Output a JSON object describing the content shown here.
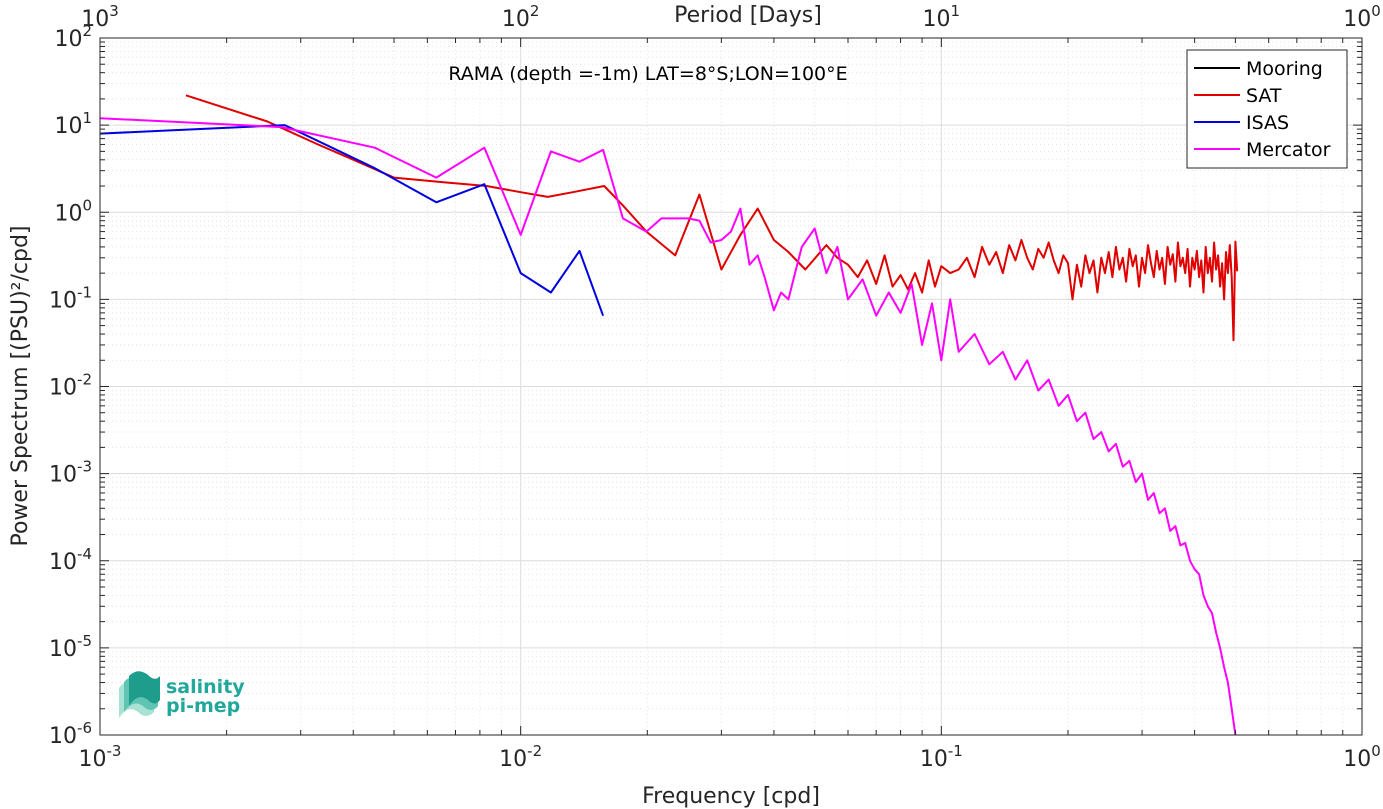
{
  "chart_data": {
    "type": "line",
    "title": "RAMA (depth =-1m) LAT=8°S;LON=100°E",
    "xlabel": "Frequency [cpd]",
    "ylabel": "Power Spectrum [(PSU)²/cpd]",
    "x2label": "Period [Days]",
    "xscale": "log",
    "yscale": "log",
    "xlim": [
      0.001,
      1
    ],
    "ylim": [
      1e-06,
      100
    ],
    "grid": true,
    "legend_position": "top-right",
    "x_ticks": [
      {
        "base": "10",
        "exp": "-3"
      },
      {
        "base": "10",
        "exp": "-2"
      },
      {
        "base": "10",
        "exp": "-1"
      },
      {
        "base": "10",
        "exp": "0"
      }
    ],
    "x2_ticks": [
      {
        "base": "10",
        "exp": "3"
      },
      {
        "base": "10",
        "exp": "2"
      },
      {
        "base": "10",
        "exp": "1"
      },
      {
        "base": "10",
        "exp": "0"
      }
    ],
    "y_ticks": [
      {
        "base": "10",
        "exp": "-6"
      },
      {
        "base": "10",
        "exp": "-5"
      },
      {
        "base": "10",
        "exp": "-4"
      },
      {
        "base": "10",
        "exp": "-3"
      },
      {
        "base": "10",
        "exp": "-2"
      },
      {
        "base": "10",
        "exp": "-1"
      },
      {
        "base": "10",
        "exp": "0"
      },
      {
        "base": "10",
        "exp": "1"
      },
      {
        "base": "10",
        "exp": "2"
      }
    ],
    "series": [
      {
        "name": "Mooring",
        "color": "#000000",
        "x": [],
        "y": []
      },
      {
        "name": "SAT",
        "color": "#e00000",
        "x": [
          0.0016,
          0.0025,
          0.0033,
          0.0041,
          0.005,
          0.0066,
          0.0083,
          0.01,
          0.0116,
          0.0133,
          0.0158,
          0.0175,
          0.0199,
          0.0233,
          0.0266,
          0.03,
          0.0333,
          0.0366,
          0.04,
          0.0433,
          0.0475,
          0.0533,
          0.0566,
          0.06,
          0.0633,
          0.0666,
          0.07,
          0.0733,
          0.0766,
          0.08,
          0.0833,
          0.0866,
          0.09,
          0.0933,
          0.0966,
          0.1,
          0.105,
          0.11,
          0.115,
          0.12,
          0.125,
          0.13,
          0.135,
          0.14,
          0.145,
          0.15,
          0.155,
          0.16,
          0.165,
          0.17,
          0.175,
          0.18,
          0.185,
          0.19,
          0.195,
          0.2,
          0.205,
          0.21,
          0.215,
          0.22,
          0.225,
          0.23,
          0.235,
          0.24,
          0.245,
          0.25,
          0.255,
          0.26,
          0.265,
          0.27,
          0.275,
          0.28,
          0.285,
          0.29,
          0.295,
          0.3,
          0.305,
          0.31,
          0.315,
          0.32,
          0.325,
          0.33,
          0.335,
          0.34,
          0.345,
          0.35,
          0.355,
          0.36,
          0.365,
          0.37,
          0.375,
          0.38,
          0.385,
          0.39,
          0.395,
          0.4,
          0.405,
          0.41,
          0.415,
          0.42,
          0.425,
          0.43,
          0.435,
          0.44,
          0.445,
          0.45,
          0.455,
          0.46,
          0.465,
          0.47,
          0.475,
          0.48,
          0.485,
          0.49,
          0.495,
          0.5,
          0.505
        ],
        "y": [
          22,
          11,
          6,
          3.8,
          2.5,
          2.2,
          2.0,
          1.7,
          1.5,
          1.7,
          2.0,
          1.2,
          0.6,
          0.32,
          1.6,
          0.22,
          0.55,
          1.1,
          0.48,
          0.35,
          0.22,
          0.42,
          0.3,
          0.25,
          0.18,
          0.28,
          0.15,
          0.32,
          0.14,
          0.19,
          0.13,
          0.2,
          0.12,
          0.28,
          0.14,
          0.24,
          0.2,
          0.22,
          0.3,
          0.18,
          0.4,
          0.25,
          0.35,
          0.2,
          0.42,
          0.28,
          0.48,
          0.3,
          0.22,
          0.38,
          0.3,
          0.45,
          0.28,
          0.2,
          0.32,
          0.26,
          0.1,
          0.25,
          0.14,
          0.32,
          0.2,
          0.28,
          0.12,
          0.3,
          0.2,
          0.35,
          0.18,
          0.4,
          0.22,
          0.3,
          0.16,
          0.38,
          0.24,
          0.32,
          0.14,
          0.3,
          0.2,
          0.42,
          0.26,
          0.18,
          0.36,
          0.22,
          0.3,
          0.15,
          0.4,
          0.25,
          0.33,
          0.16,
          0.45,
          0.24,
          0.3,
          0.2,
          0.38,
          0.14,
          0.3,
          0.22,
          0.36,
          0.18,
          0.28,
          0.12,
          0.4,
          0.2,
          0.3,
          0.16,
          0.45,
          0.22,
          0.32,
          0.14,
          0.26,
          0.1,
          0.35,
          0.2,
          0.42,
          0.18,
          0.034,
          0.46,
          0.21
        ]
      },
      {
        "name": "ISAS",
        "color": "#0000e0",
        "x": [
          0.001,
          0.00275,
          0.0045,
          0.0063,
          0.0082,
          0.01,
          0.0118,
          0.0138,
          0.0157
        ],
        "y": [
          8,
          10,
          3.2,
          1.3,
          2.1,
          0.2,
          0.12,
          0.36,
          0.065
        ]
      },
      {
        "name": "Mercator",
        "color": "#ff00ff",
        "x": [
          0.001,
          0.0027,
          0.0045,
          0.0063,
          0.0082,
          0.01,
          0.0118,
          0.0138,
          0.0157,
          0.0175,
          0.0199,
          0.0216,
          0.025,
          0.0266,
          0.0283,
          0.03,
          0.0316,
          0.0333,
          0.035,
          0.0366,
          0.038,
          0.04,
          0.0416,
          0.0433,
          0.045,
          0.0466,
          0.05,
          0.0533,
          0.0566,
          0.06,
          0.065,
          0.07,
          0.075,
          0.08,
          0.085,
          0.09,
          0.095,
          0.1,
          0.105,
          0.11,
          0.12,
          0.13,
          0.14,
          0.15,
          0.16,
          0.17,
          0.18,
          0.19,
          0.2,
          0.21,
          0.22,
          0.23,
          0.24,
          0.25,
          0.26,
          0.27,
          0.28,
          0.29,
          0.3,
          0.31,
          0.32,
          0.33,
          0.34,
          0.35,
          0.36,
          0.37,
          0.38,
          0.39,
          0.4,
          0.41,
          0.42,
          0.43,
          0.44,
          0.45,
          0.46,
          0.47,
          0.48,
          0.49,
          0.5
        ],
        "y": [
          12,
          9.5,
          5.5,
          2.5,
          5.5,
          0.55,
          5,
          3.8,
          5.2,
          0.85,
          0.6,
          0.85,
          0.85,
          0.8,
          0.45,
          0.48,
          0.6,
          1.1,
          0.25,
          0.32,
          0.18,
          0.075,
          0.12,
          0.1,
          0.21,
          0.4,
          0.65,
          0.2,
          0.4,
          0.1,
          0.17,
          0.065,
          0.12,
          0.07,
          0.15,
          0.03,
          0.09,
          0.02,
          0.1,
          0.025,
          0.04,
          0.018,
          0.025,
          0.012,
          0.02,
          0.009,
          0.012,
          0.006,
          0.008,
          0.004,
          0.005,
          0.0025,
          0.003,
          0.0018,
          0.0022,
          0.0012,
          0.0014,
          0.0008,
          0.001,
          0.0005,
          0.0006,
          0.00035,
          0.0004,
          0.00022,
          0.00025,
          0.00015,
          0.00016,
          0.0001,
          8e-05,
          7e-05,
          4e-05,
          3e-05,
          2.5e-05,
          1.5e-05,
          1e-05,
          6e-06,
          4e-06,
          2e-06,
          1e-06
        ]
      }
    ]
  },
  "logo": {
    "line1": "salinity",
    "line2": "pi-mep"
  }
}
